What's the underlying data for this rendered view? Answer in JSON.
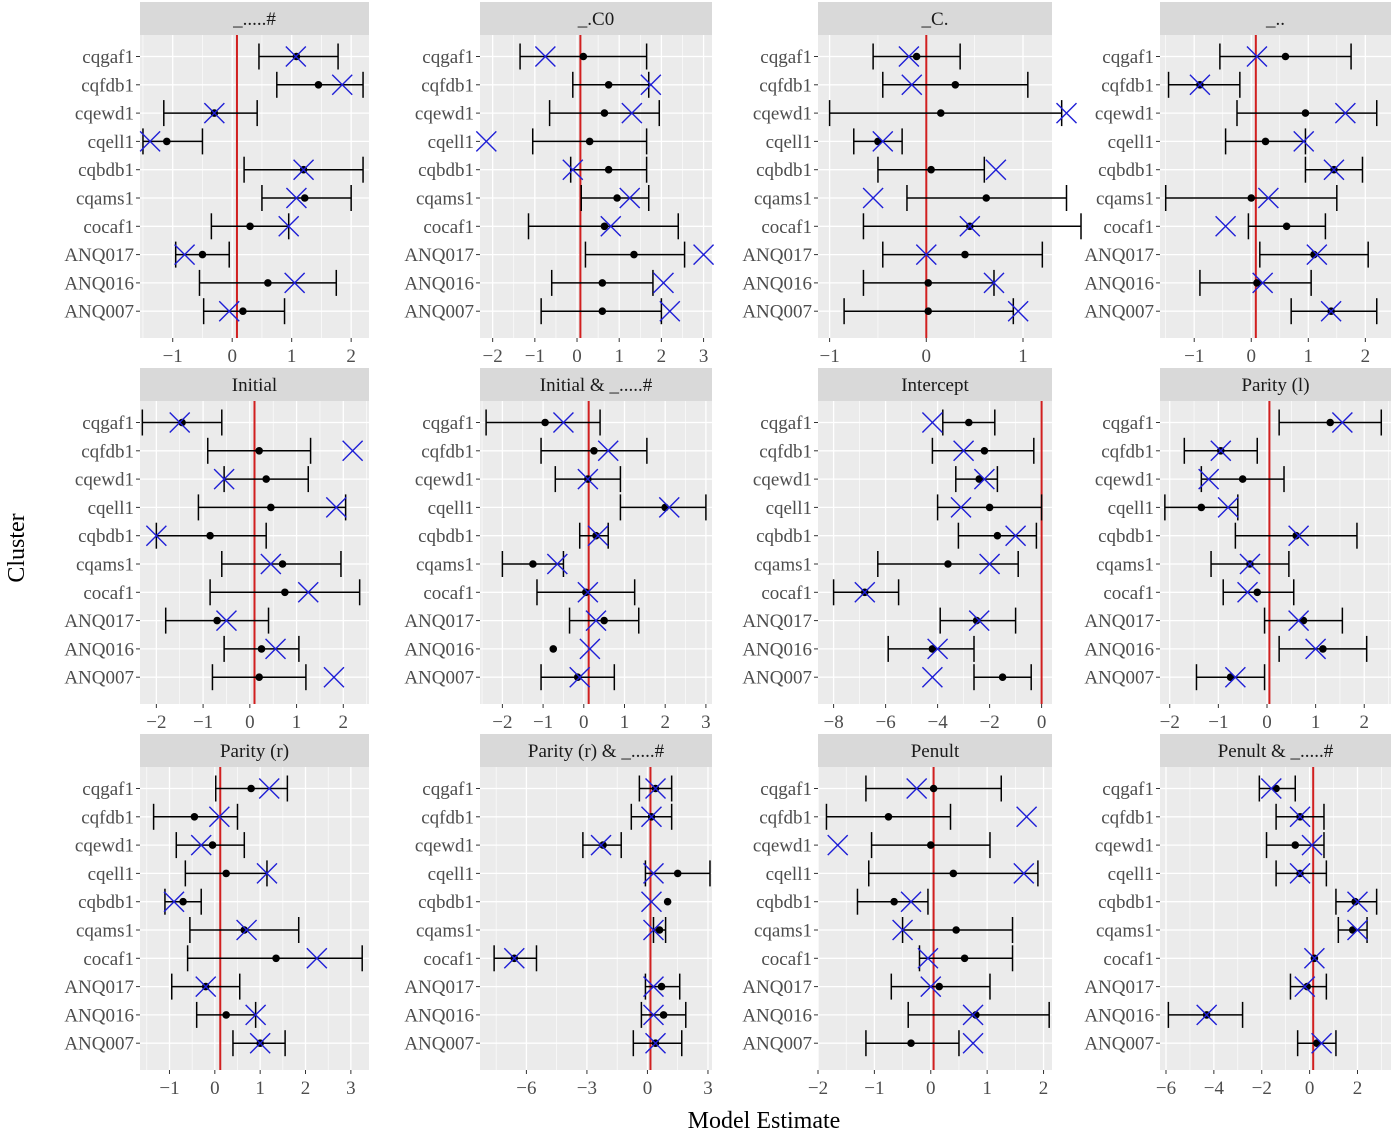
{
  "chart_data": {
    "type": "scatter",
    "description_role": "faceted forest plot: point estimate with interval and a comparison cross marker per cluster",
    "xlabel": "Model Estimate",
    "ylabel": "Cluster",
    "categories": [
      "cqgaf1",
      "cqfdb1",
      "cqewd1",
      "cqell1",
      "cqbdb1",
      "cqams1",
      "cocaf1",
      "ANQ017",
      "ANQ016",
      "ANQ007"
    ],
    "colors": {
      "point": "#000000",
      "interval": "#000000",
      "cross": "#1f1fd6",
      "ref_line": "#d11f1f",
      "panel_bg": "#ebebeb",
      "strip_bg": "#d9d9d9",
      "grid": "#ffffff"
    },
    "facets": [
      {
        "title": "_.....#",
        "xlim": [
          -1.55,
          2.3
        ],
        "xticks": [
          -1,
          0,
          1,
          2
        ],
        "ref": 0.08,
        "rows": [
          [
            1.08,
            0.45,
            1.78,
            1.07
          ],
          [
            1.45,
            0.75,
            2.2,
            1.85
          ],
          [
            -0.3,
            -1.15,
            0.42,
            -0.3
          ],
          [
            -1.1,
            -1.5,
            -0.5,
            -1.38
          ],
          [
            1.2,
            0.2,
            2.2,
            1.2
          ],
          [
            1.22,
            0.5,
            2.0,
            1.08
          ],
          [
            0.3,
            -0.35,
            0.95,
            0.95
          ],
          [
            -0.5,
            -0.95,
            -0.05,
            -0.8
          ],
          [
            0.6,
            -0.55,
            1.75,
            1.05
          ],
          [
            0.18,
            -0.48,
            0.88,
            -0.05
          ]
        ]
      },
      {
        "title": "_.C0",
        "xlim": [
          -2.3,
          3.2
        ],
        "xticks": [
          -2,
          -1,
          0,
          1,
          2,
          3
        ],
        "ref": 0.08,
        "rows": [
          [
            0.15,
            -1.35,
            1.65,
            -0.75
          ],
          [
            0.75,
            -0.1,
            1.7,
            1.75
          ],
          [
            0.65,
            -0.65,
            1.95,
            1.3
          ],
          [
            0.3,
            -1.05,
            1.65,
            -2.15
          ],
          [
            0.75,
            -0.15,
            1.65,
            -0.1
          ],
          [
            0.95,
            0.1,
            1.7,
            1.25
          ],
          [
            0.65,
            -1.15,
            2.4,
            0.8
          ],
          [
            1.35,
            0.2,
            2.55,
            3.0
          ],
          [
            0.6,
            -0.6,
            1.8,
            2.05
          ],
          [
            0.6,
            -0.85,
            2.0,
            2.2
          ]
        ]
      },
      {
        "title": "_C.",
        "xlim": [
          -1.12,
          1.3
        ],
        "xticks": [
          -1,
          0,
          1
        ],
        "ref": 0.0,
        "rows": [
          [
            -0.1,
            -0.55,
            0.35,
            -0.18
          ],
          [
            0.3,
            -0.45,
            1.05,
            -0.15
          ],
          [
            0.15,
            -1.0,
            1.4,
            1.45
          ],
          [
            -0.5,
            -0.75,
            -0.25,
            -0.45
          ],
          [
            0.05,
            -0.5,
            0.6,
            0.72
          ],
          [
            0.62,
            -0.2,
            1.45,
            -0.55
          ],
          [
            0.45,
            -0.65,
            1.6,
            0.45
          ],
          [
            0.4,
            -0.45,
            1.2,
            0.0
          ],
          [
            0.02,
            -0.65,
            0.7,
            0.7
          ],
          [
            0.02,
            -0.85,
            0.9,
            0.95
          ]
        ]
      },
      {
        "title": "_..",
        "xlim": [
          -1.6,
          2.45
        ],
        "xticks": [
          -1,
          0,
          1,
          2
        ],
        "ref": 0.08,
        "rows": [
          [
            0.6,
            -0.55,
            1.75,
            0.1
          ],
          [
            -0.9,
            -1.45,
            -0.2,
            -0.9
          ],
          [
            0.95,
            -0.25,
            2.2,
            1.65
          ],
          [
            0.25,
            -0.45,
            0.95,
            0.92
          ],
          [
            1.45,
            0.95,
            1.95,
            1.45
          ],
          [
            0.0,
            -1.5,
            1.5,
            0.3
          ],
          [
            0.62,
            -0.05,
            1.3,
            -0.45
          ],
          [
            1.1,
            0.15,
            2.05,
            1.15
          ],
          [
            0.1,
            -0.9,
            1.05,
            0.2
          ],
          [
            1.4,
            0.7,
            2.2,
            1.4
          ]
        ]
      },
      {
        "title": "Initial",
        "xlim": [
          -2.35,
          2.55
        ],
        "xticks": [
          -2,
          -1,
          0,
          1,
          2
        ],
        "ref": 0.1,
        "rows": [
          [
            -1.45,
            -2.3,
            -0.6,
            -1.5
          ],
          [
            0.2,
            -0.9,
            1.3,
            2.2
          ],
          [
            0.35,
            -0.55,
            1.25,
            -0.55
          ],
          [
            0.45,
            -1.1,
            2.05,
            1.85
          ],
          [
            -0.85,
            -2.0,
            0.35,
            -2.0
          ],
          [
            0.7,
            -0.6,
            1.95,
            0.45
          ],
          [
            0.75,
            -0.85,
            2.35,
            1.25
          ],
          [
            -0.7,
            -1.8,
            0.4,
            -0.5
          ],
          [
            0.25,
            -0.55,
            1.05,
            0.55
          ],
          [
            0.2,
            -0.8,
            1.2,
            1.8
          ]
        ]
      },
      {
        "title": "Initial & _.....#",
        "xlim": [
          -2.55,
          3.15
        ],
        "xticks": [
          -2,
          -1,
          0,
          1,
          2,
          3
        ],
        "ref": 0.12,
        "rows": [
          [
            -0.95,
            -2.4,
            0.4,
            -0.5
          ],
          [
            0.25,
            -1.05,
            1.55,
            0.6
          ],
          [
            0.1,
            -0.7,
            0.9,
            0.1
          ],
          [
            2.0,
            0.9,
            3.0,
            2.1
          ],
          [
            0.3,
            -0.1,
            0.6,
            0.35
          ],
          [
            -1.25,
            -2.0,
            -0.5,
            -0.65
          ],
          [
            0.05,
            -1.15,
            1.25,
            0.1
          ],
          [
            0.5,
            -0.35,
            1.35,
            0.3
          ],
          [
            -0.75,
            -0.75,
            -0.75,
            0.15
          ],
          [
            -0.15,
            -1.05,
            0.75,
            -0.1
          ]
        ]
      },
      {
        "title": "Intercept",
        "xlim": [
          -8.6,
          0.4
        ],
        "xticks": [
          -8,
          -6,
          -4,
          -2,
          0
        ],
        "ref": 0.0,
        "rows": [
          [
            -2.8,
            -3.8,
            -1.8,
            -4.2
          ],
          [
            -2.2,
            -4.2,
            -0.3,
            -3.0
          ],
          [
            -2.4,
            -3.3,
            -1.7,
            -2.2
          ],
          [
            -2.0,
            -4.0,
            0.0,
            -3.1
          ],
          [
            -1.7,
            -3.2,
            -0.2,
            -1.0
          ],
          [
            -3.6,
            -6.3,
            -0.9,
            -2.0
          ],
          [
            -6.8,
            -8.0,
            -5.5,
            -6.8
          ],
          [
            -2.5,
            -3.9,
            -1.0,
            -2.4
          ],
          [
            -4.2,
            -5.9,
            -2.6,
            -4.0
          ],
          [
            -1.5,
            -2.6,
            -0.4,
            -4.2
          ]
        ]
      },
      {
        "title": "Parity (l)",
        "xlim": [
          -2.2,
          2.55
        ],
        "xticks": [
          -2,
          -1,
          0,
          1,
          2
        ],
        "ref": 0.05,
        "rows": [
          [
            1.3,
            0.25,
            2.35,
            1.55
          ],
          [
            -0.95,
            -1.7,
            -0.2,
            -0.95
          ],
          [
            -0.5,
            -1.35,
            0.35,
            -1.2
          ],
          [
            -1.35,
            -2.1,
            -0.6,
            -0.8
          ],
          [
            0.6,
            -0.65,
            1.85,
            0.65
          ],
          [
            -0.35,
            -1.15,
            0.45,
            -0.35
          ],
          [
            -0.2,
            -0.9,
            0.55,
            -0.4
          ],
          [
            0.75,
            -0.05,
            1.55,
            0.65
          ],
          [
            1.15,
            0.25,
            2.05,
            1.0
          ],
          [
            -0.75,
            -1.45,
            -0.05,
            -0.65
          ]
        ]
      },
      {
        "title": "Parity (r)",
        "xlim": [
          -1.65,
          3.4
        ],
        "xticks": [
          -1,
          0,
          1,
          2,
          3
        ],
        "ref": 0.12,
        "rows": [
          [
            0.8,
            0.02,
            1.6,
            1.2
          ],
          [
            -0.45,
            -1.35,
            0.5,
            0.1
          ],
          [
            -0.05,
            -0.85,
            0.65,
            -0.3
          ],
          [
            0.25,
            -0.65,
            1.15,
            1.15
          ],
          [
            -0.7,
            -1.1,
            -0.3,
            -0.9
          ],
          [
            0.65,
            -0.55,
            1.85,
            0.7
          ],
          [
            1.35,
            -0.6,
            3.25,
            2.25
          ],
          [
            -0.2,
            -0.95,
            0.55,
            -0.2
          ],
          [
            0.25,
            -0.4,
            0.9,
            0.9
          ],
          [
            1.0,
            0.4,
            1.55,
            1.0
          ]
        ]
      },
      {
        "title": "Parity (r) & _.....#",
        "xlim": [
          -8.3,
          3.2
        ],
        "xticks": [
          -6,
          -3,
          0,
          3
        ],
        "ref": 0.15,
        "rows": [
          [
            0.4,
            -0.4,
            1.2,
            0.4
          ],
          [
            0.2,
            -0.8,
            1.2,
            0.2
          ],
          [
            -2.2,
            -3.2,
            -1.3,
            -2.3
          ],
          [
            1.5,
            -0.1,
            3.1,
            0.3
          ],
          [
            1.0,
            1.0,
            1.0,
            0.2
          ],
          [
            0.6,
            0.3,
            0.9,
            0.3
          ],
          [
            -6.6,
            -7.6,
            -5.5,
            -6.6
          ],
          [
            0.7,
            -0.1,
            1.6,
            0.3
          ],
          [
            0.8,
            -0.3,
            1.9,
            0.3
          ],
          [
            0.4,
            -0.7,
            1.7,
            0.4
          ]
        ]
      },
      {
        "title": "Penult",
        "xlim": [
          -2.0,
          2.15
        ],
        "xticks": [
          -2,
          -1,
          0,
          1,
          2
        ],
        "ref": 0.05,
        "rows": [
          [
            0.05,
            -1.15,
            1.25,
            -0.25
          ],
          [
            -0.75,
            -1.85,
            0.35,
            1.7
          ],
          [
            0.0,
            -1.05,
            1.05,
            -1.65
          ],
          [
            0.4,
            -1.1,
            1.9,
            1.65
          ],
          [
            -0.65,
            -1.3,
            -0.05,
            -0.35
          ],
          [
            0.45,
            -0.5,
            1.45,
            -0.5
          ],
          [
            0.6,
            -0.2,
            1.45,
            -0.05
          ],
          [
            0.15,
            -0.7,
            1.05,
            0.0
          ],
          [
            0.8,
            -0.4,
            2.1,
            0.75
          ],
          [
            -0.35,
            -1.15,
            0.5,
            0.75
          ]
        ]
      },
      {
        "title": "Penult & _.....#",
        "xlim": [
          -6.25,
          3.4
        ],
        "xticks": [
          -6,
          -4,
          -2,
          0,
          2
        ],
        "ref": 0.15,
        "rows": [
          [
            -1.4,
            -2.1,
            -0.6,
            -1.6
          ],
          [
            -0.4,
            -1.4,
            0.6,
            -0.4
          ],
          [
            -0.6,
            -1.8,
            0.6,
            0.1
          ],
          [
            -0.4,
            -1.4,
            0.7,
            -0.4
          ],
          [
            1.9,
            1.1,
            2.8,
            2.0
          ],
          [
            1.8,
            1.2,
            2.4,
            2.0
          ],
          [
            0.2,
            0.2,
            0.2,
            0.2
          ],
          [
            -0.1,
            -0.8,
            0.7,
            -0.2
          ],
          [
            -4.3,
            -5.9,
            -2.8,
            -4.3
          ],
          [
            0.3,
            -0.5,
            1.1,
            0.5
          ]
        ]
      }
    ]
  }
}
